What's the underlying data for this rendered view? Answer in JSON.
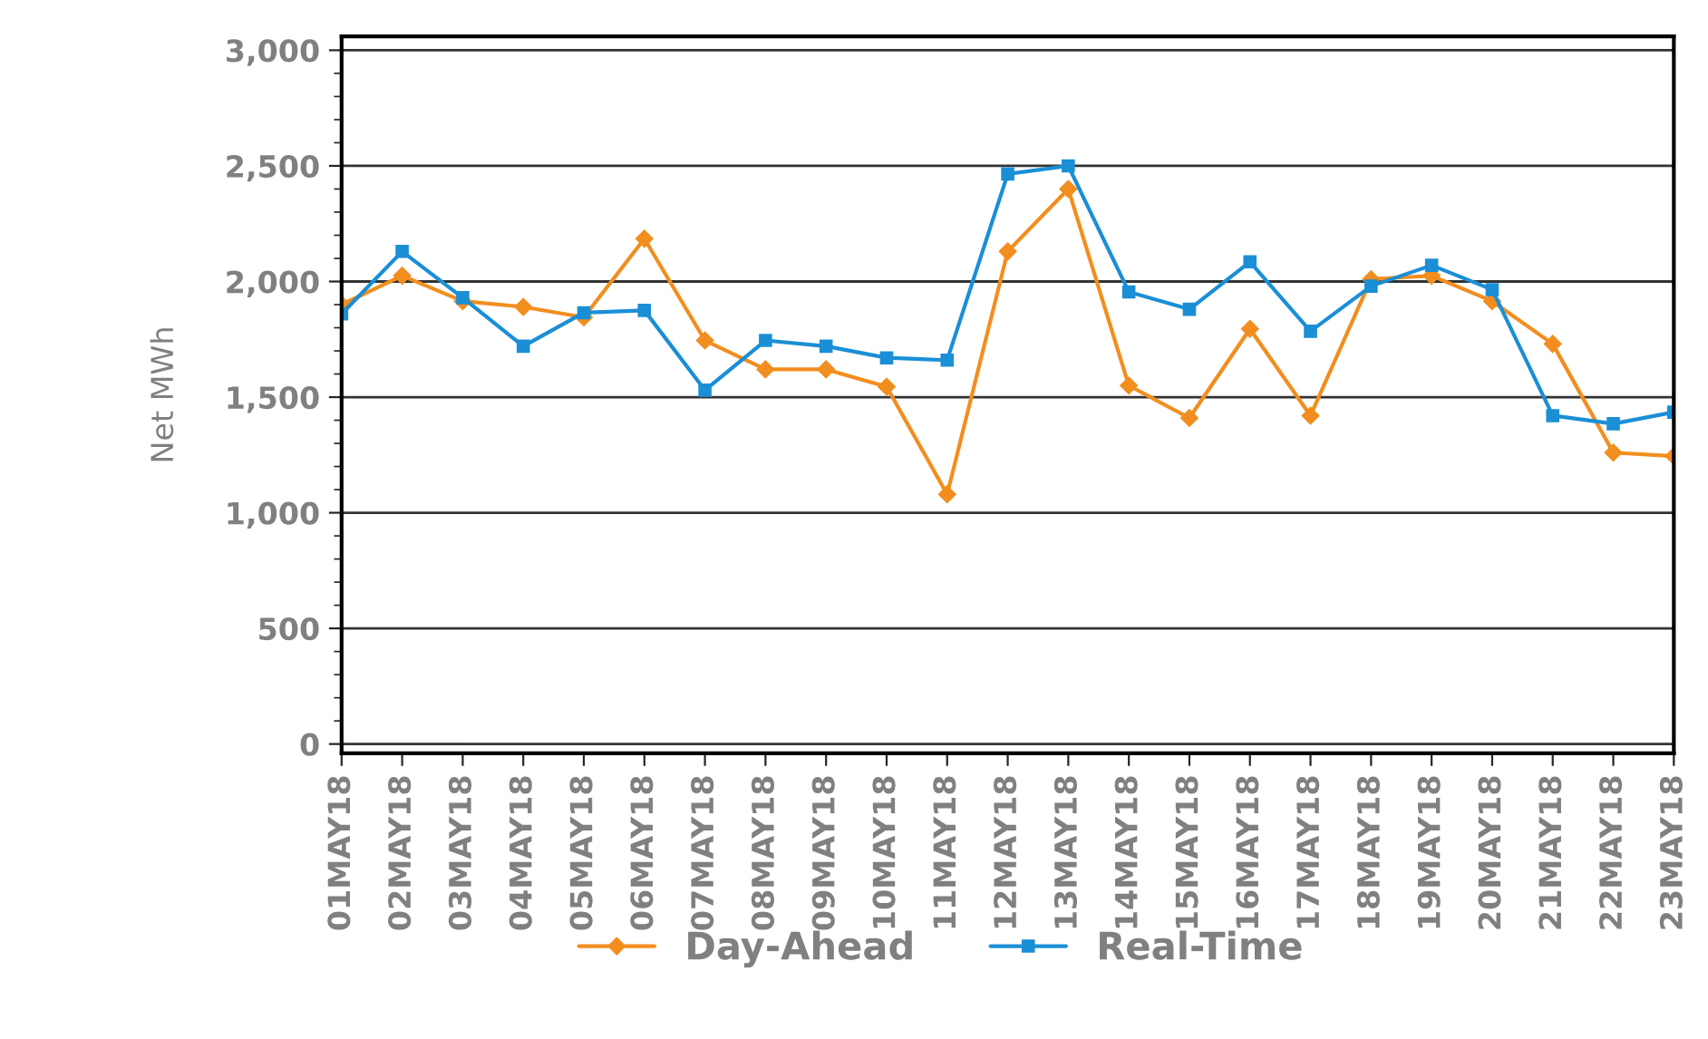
{
  "chart_data": {
    "type": "line",
    "ylabel": "Net MWh",
    "categories": [
      "01MAY18",
      "02MAY18",
      "03MAY18",
      "04MAY18",
      "05MAY18",
      "06MAY18",
      "07MAY18",
      "08MAY18",
      "09MAY18",
      "10MAY18",
      "11MAY18",
      "12MAY18",
      "13MAY18",
      "14MAY18",
      "15MAY18",
      "16MAY18",
      "17MAY18",
      "18MAY18",
      "19MAY18",
      "20MAY18",
      "21MAY18",
      "22MAY18",
      "23MAY18"
    ],
    "series": [
      {
        "name": "Day-Ahead",
        "color": "#f28e1f",
        "marker": "diamond",
        "values": [
          1900,
          2025,
          1915,
          1890,
          1845,
          2185,
          1745,
          1620,
          1620,
          1545,
          1080,
          2130,
          2400,
          1550,
          1410,
          1795,
          1420,
          2010,
          2025,
          1915,
          1730,
          1260,
          1245
        ]
      },
      {
        "name": "Real-Time",
        "color": "#1a8fd6",
        "marker": "square",
        "values": [
          1860,
          2130,
          1930,
          1720,
          1865,
          1875,
          1530,
          1745,
          1720,
          1670,
          1660,
          2465,
          2500,
          1955,
          1880,
          2085,
          1785,
          1980,
          2070,
          1965,
          1420,
          1385,
          1435
        ]
      }
    ],
    "ylim": [
      -40,
      3060
    ],
    "yticks": [
      {
        "value": 0,
        "label": "0"
      },
      {
        "value": 500,
        "label": "500"
      },
      {
        "value": 1000,
        "label": "1,000"
      },
      {
        "value": 1500,
        "label": "1,500"
      },
      {
        "value": 2000,
        "label": "2,000"
      },
      {
        "value": 2500,
        "label": "2,500"
      },
      {
        "value": 3000,
        "label": "3,000"
      }
    ],
    "grid": "y",
    "legend": "bottom",
    "line_style": "solid"
  }
}
